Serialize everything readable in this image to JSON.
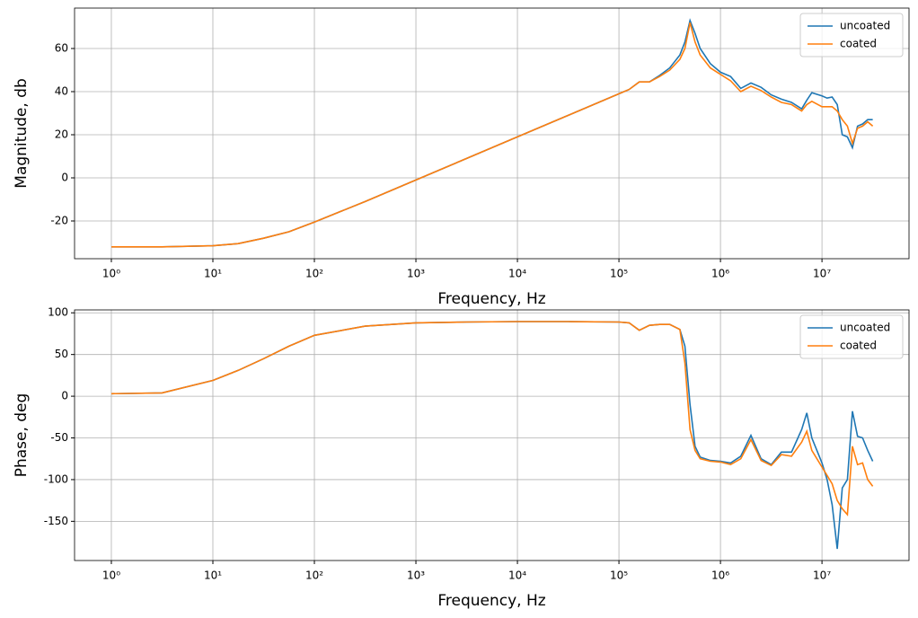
{
  "chart_data": [
    {
      "type": "line",
      "xlabel": "Frequency, Hz",
      "ylabel": "Magnitude, db",
      "xscale": "log",
      "grid": true,
      "legend": "upper right",
      "xlim": [
        0.434,
        72000000
      ],
      "ylim": [
        -37.5,
        78.75
      ],
      "xticks": [
        {
          "value": 1,
          "label": "10⁰"
        },
        {
          "value": 10,
          "label": "10¹"
        },
        {
          "value": 100,
          "label": "10²"
        },
        {
          "value": 1000,
          "label": "10³"
        },
        {
          "value": 10000,
          "label": "10⁴"
        },
        {
          "value": 100000,
          "label": "10⁵"
        },
        {
          "value": 1000000,
          "label": "10⁶"
        },
        {
          "value": 10000000,
          "label": "10⁷"
        }
      ],
      "yticks": [
        -20,
        0,
        20,
        40,
        60
      ],
      "x": [
        1,
        3.16,
        10,
        17.8,
        31.6,
        56.2,
        100,
        316,
        1000,
        3162,
        10000,
        31623,
        100000,
        125893,
        158489,
        199526,
        251189,
        316228,
        398107,
        446684,
        501187,
        562341,
        630957,
        794328,
        1000000,
        1258925,
        1584893,
        1995262,
        2511886,
        3162278,
        3981072,
        5011872,
        6309573,
        7079458,
        7943282,
        10000000,
        11220185,
        12589254,
        14125375,
        15848932,
        17782794,
        19952623,
        22387211,
        25118864,
        28183829,
        31622777
      ],
      "series": [
        {
          "name": "uncoated",
          "color": "#1f77b4",
          "values": [
            -32,
            -32,
            -31.5,
            -30.5,
            -28,
            -25,
            -20.5,
            -11,
            -1,
            9,
            19,
            29,
            39,
            41,
            44.5,
            44.5,
            47.5,
            51,
            57,
            63,
            73,
            67,
            60,
            53,
            49,
            47,
            41.5,
            44,
            42,
            38.5,
            36.5,
            35,
            32,
            36,
            39.5,
            38,
            37,
            37.5,
            34,
            20,
            19,
            14,
            24,
            25,
            27,
            27
          ]
        },
        {
          "name": "coated",
          "color": "#ff7f0e",
          "values": [
            -32,
            -32,
            -31.5,
            -30.5,
            -28,
            -25,
            -20.5,
            -11,
            -1,
            9,
            19,
            29,
            39,
            41,
            44.5,
            44.5,
            47,
            50,
            55,
            60,
            72,
            63,
            57,
            51,
            48,
            45,
            40,
            42.5,
            40.5,
            37.5,
            35,
            34,
            31,
            34,
            35.5,
            33,
            33,
            33,
            31,
            27,
            24,
            16,
            23,
            24,
            26,
            24
          ]
        }
      ]
    },
    {
      "type": "line",
      "xlabel": "Frequency, Hz",
      "ylabel": "Phase, deg",
      "xscale": "log",
      "grid": true,
      "legend": "upper right",
      "xlim": [
        0.434,
        72000000
      ],
      "ylim": [
        -197,
        103.5
      ],
      "xticks": [
        {
          "value": 1,
          "label": "10⁰"
        },
        {
          "value": 10,
          "label": "10¹"
        },
        {
          "value": 100,
          "label": "10²"
        },
        {
          "value": 1000,
          "label": "10³"
        },
        {
          "value": 10000,
          "label": "10⁴"
        },
        {
          "value": 100000,
          "label": "10⁵"
        },
        {
          "value": 1000000,
          "label": "10⁶"
        },
        {
          "value": 10000000,
          "label": "10⁷"
        }
      ],
      "yticks": [
        -150,
        -100,
        -50,
        0,
        50,
        100
      ],
      "x": [
        1,
        3.16,
        10,
        17.8,
        31.6,
        56.2,
        100,
        316,
        1000,
        3162,
        10000,
        31623,
        100000,
        125893,
        158489,
        199526,
        251189,
        316228,
        398107,
        446684,
        501187,
        562341,
        630957,
        794328,
        1000000,
        1258925,
        1584893,
        1995262,
        2511886,
        3162278,
        3981072,
        5011872,
        6309573,
        7079458,
        7943282,
        10000000,
        11220185,
        12589254,
        14125375,
        15848932,
        17782794,
        19952623,
        22387211,
        25118864,
        28183829,
        31622777
      ],
      "series": [
        {
          "name": "uncoated",
          "color": "#1f77b4",
          "values": [
            3,
            4,
            19,
            31,
            45,
            60,
            73,
            84,
            88,
            89,
            89.5,
            89.5,
            89,
            88,
            79,
            85,
            86,
            86,
            80,
            60,
            -10,
            -60,
            -73,
            -77,
            -78,
            -80,
            -72,
            -47,
            -75,
            -82,
            -67,
            -67,
            -40,
            -20,
            -50,
            -80,
            -100,
            -130,
            -183,
            -110,
            -100,
            -18,
            -48,
            -50,
            -65,
            -78
          ]
        },
        {
          "name": "coated",
          "color": "#ff7f0e",
          "values": [
            3,
            4,
            19,
            31,
            45,
            60,
            73,
            84,
            88,
            89,
            89.5,
            89.5,
            89,
            88,
            79,
            85,
            86,
            86,
            80,
            40,
            -40,
            -65,
            -75,
            -78,
            -79,
            -82,
            -75,
            -52,
            -77,
            -83,
            -70,
            -72,
            -55,
            -42,
            -65,
            -85,
            -95,
            -105,
            -125,
            -135,
            -142,
            -60,
            -82,
            -80,
            -100,
            -108
          ]
        }
      ]
    }
  ]
}
